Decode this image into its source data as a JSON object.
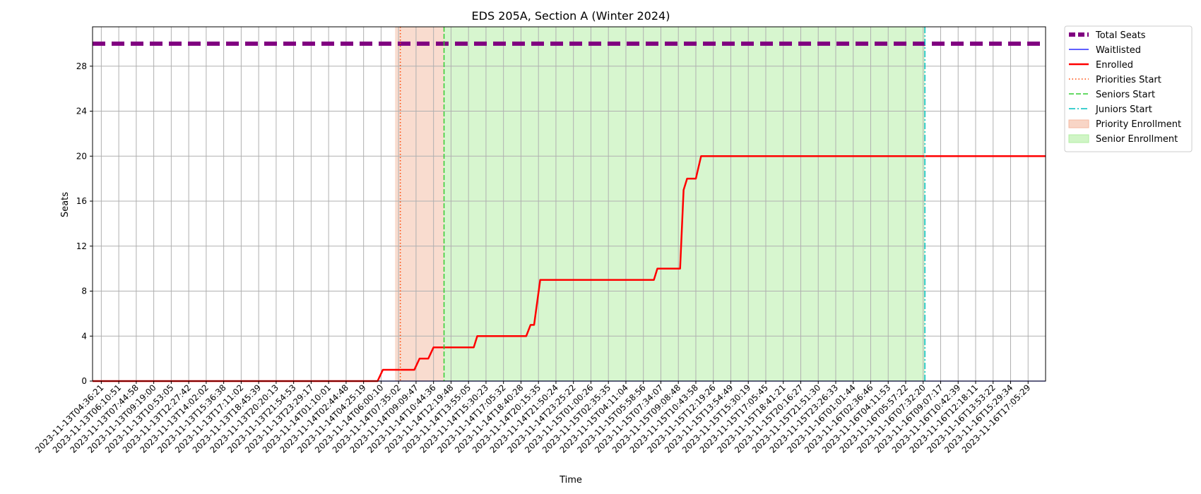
{
  "chart_data": {
    "type": "line",
    "title": "EDS 205A, Section A (Winter 2024)",
    "xlabel": "Time",
    "ylabel": "Seats",
    "ylim": [
      0,
      31.5
    ],
    "yticks": [
      0,
      4,
      8,
      12,
      16,
      20,
      24,
      28
    ],
    "grid": true,
    "legend_position": "outside-top-right",
    "x_tick_labels": [
      "2023-11-13T04:36:21",
      "2023-11-13T06:10:51",
      "2023-11-13T07:44:58",
      "2023-11-13T09:19:00",
      "2023-11-13T10:53:05",
      "2023-11-13T12:27:42",
      "2023-11-13T14:02:02",
      "2023-11-13T15:36:38",
      "2023-11-13T17:11:02",
      "2023-11-13T18:45:39",
      "2023-11-13T20:20:13",
      "2023-11-13T21:54:53",
      "2023-11-13T23:29:17",
      "2023-11-14T01:10:01",
      "2023-11-14T02:44:48",
      "2023-11-14T04:25:19",
      "2023-11-14T06:00:10",
      "2023-11-14T07:35:02",
      "2023-11-14T09:09:47",
      "2023-11-14T10:44:36",
      "2023-11-14T12:19:48",
      "2023-11-14T13:55:05",
      "2023-11-14T15:30:23",
      "2023-11-14T17:05:32",
      "2023-11-14T18:40:28",
      "2023-11-14T20:15:35",
      "2023-11-14T21:50:24",
      "2023-11-14T23:25:22",
      "2023-11-15T01:00:26",
      "2023-11-15T02:35:35",
      "2023-11-15T04:11:04",
      "2023-11-15T05:58:56",
      "2023-11-15T07:34:07",
      "2023-11-15T09:08:48",
      "2023-11-15T10:43:58",
      "2023-11-15T12:19:26",
      "2023-11-15T13:54:49",
      "2023-11-15T15:30:19",
      "2023-11-15T17:05:45",
      "2023-11-15T18:41:21",
      "2023-11-15T20:16:27",
      "2023-11-15T21:51:30",
      "2023-11-15T23:26:33",
      "2023-11-16T01:01:44",
      "2023-11-16T02:36:46",
      "2023-11-16T04:11:53",
      "2023-11-16T05:57:22",
      "2023-11-16T07:32:20",
      "2023-11-16T09:07:17",
      "2023-11-16T10:42:39",
      "2023-11-16T12:18:11",
      "2023-11-16T13:53:22",
      "2023-11-16T15:29:34",
      "2023-11-16T17:05:29"
    ],
    "x_range_ticks": [
      -0.5,
      54.0
    ],
    "series": [
      {
        "name": "Total Seats",
        "color": "#800080",
        "style": "dashed-thick",
        "points": [
          [
            -0.5,
            30
          ],
          [
            54.0,
            30
          ]
        ]
      },
      {
        "name": "Waitlisted",
        "color": "#0000ff",
        "style": "solid-thin",
        "points": [
          [
            -0.5,
            0
          ],
          [
            54.0,
            0
          ]
        ]
      },
      {
        "name": "Enrolled",
        "color": "#ff0000",
        "style": "solid-thick",
        "points": [
          [
            -0.5,
            0
          ],
          [
            15.8,
            0
          ],
          [
            16.1,
            1
          ],
          [
            17.9,
            1
          ],
          [
            18.2,
            2
          ],
          [
            18.7,
            2
          ],
          [
            19.0,
            3
          ],
          [
            21.3,
            3
          ],
          [
            21.5,
            4
          ],
          [
            24.3,
            4
          ],
          [
            24.55,
            5
          ],
          [
            24.75,
            5
          ],
          [
            25.1,
            9
          ],
          [
            31.6,
            9
          ],
          [
            31.8,
            10
          ],
          [
            33.1,
            10
          ],
          [
            33.3,
            17
          ],
          [
            33.5,
            18
          ],
          [
            34.0,
            18
          ],
          [
            34.3,
            20
          ],
          [
            54.0,
            20
          ]
        ]
      }
    ],
    "vertical_lines": [
      {
        "name": "Priorities Start",
        "x": 17.1,
        "color": "#ff4500",
        "style": "dotted"
      },
      {
        "name": "Seniors Start",
        "x": 19.6,
        "color": "#32cd32",
        "style": "dashed"
      },
      {
        "name": "Juniors Start",
        "x": 47.1,
        "color": "#00bfbf",
        "style": "dashdot"
      }
    ],
    "shaded_regions": [
      {
        "name": "Priority Enrollment",
        "x_start": 16.8,
        "x_end": 19.6,
        "color": "#f4b9a0"
      },
      {
        "name": "Senior Enrollment",
        "x_start": 19.6,
        "x_end": 47.1,
        "color": "#b0eea0"
      }
    ],
    "legend": [
      {
        "label": "Total Seats",
        "kind": "line",
        "color": "#800080",
        "style": "dashed-thick"
      },
      {
        "label": "Waitlisted",
        "kind": "line",
        "color": "#0000ff",
        "style": "solid-thin"
      },
      {
        "label": "Enrolled",
        "kind": "line",
        "color": "#ff0000",
        "style": "solid-thick"
      },
      {
        "label": "Priorities Start",
        "kind": "line",
        "color": "#ff4500",
        "style": "dotted"
      },
      {
        "label": "Seniors Start",
        "kind": "line",
        "color": "#32cd32",
        "style": "dashed"
      },
      {
        "label": "Juniors Start",
        "kind": "line",
        "color": "#00bfbf",
        "style": "dashdot"
      },
      {
        "label": "Priority Enrollment",
        "kind": "patch",
        "color": "#f4b9a0"
      },
      {
        "label": "Senior Enrollment",
        "kind": "patch",
        "color": "#b0eea0"
      }
    ]
  }
}
